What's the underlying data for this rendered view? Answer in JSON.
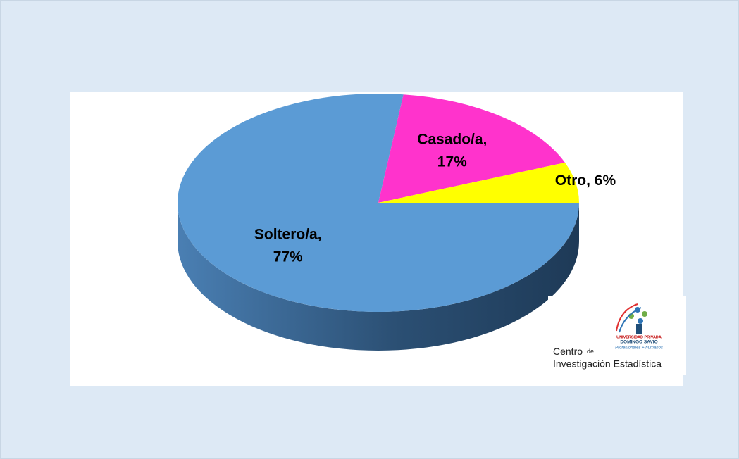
{
  "chart_data": {
    "type": "pie",
    "values": [
      77,
      17,
      6
    ],
    "value_labels": [
      "Soltero/a, 77%",
      "Casado/a, 17%",
      "Otro, 6%"
    ],
    "colors": [
      "#5b9bd5",
      "#ff33cc",
      "#ffff00"
    ],
    "three_d": true
  },
  "logo": {
    "university": "UNIVERSIDAD PRIVADA",
    "university_name": "DOMINGO SAVIO",
    "motto": "Profesionales + humanos",
    "line1": "Centro",
    "line1_small": "de",
    "line2": "Investigación Estadística"
  }
}
